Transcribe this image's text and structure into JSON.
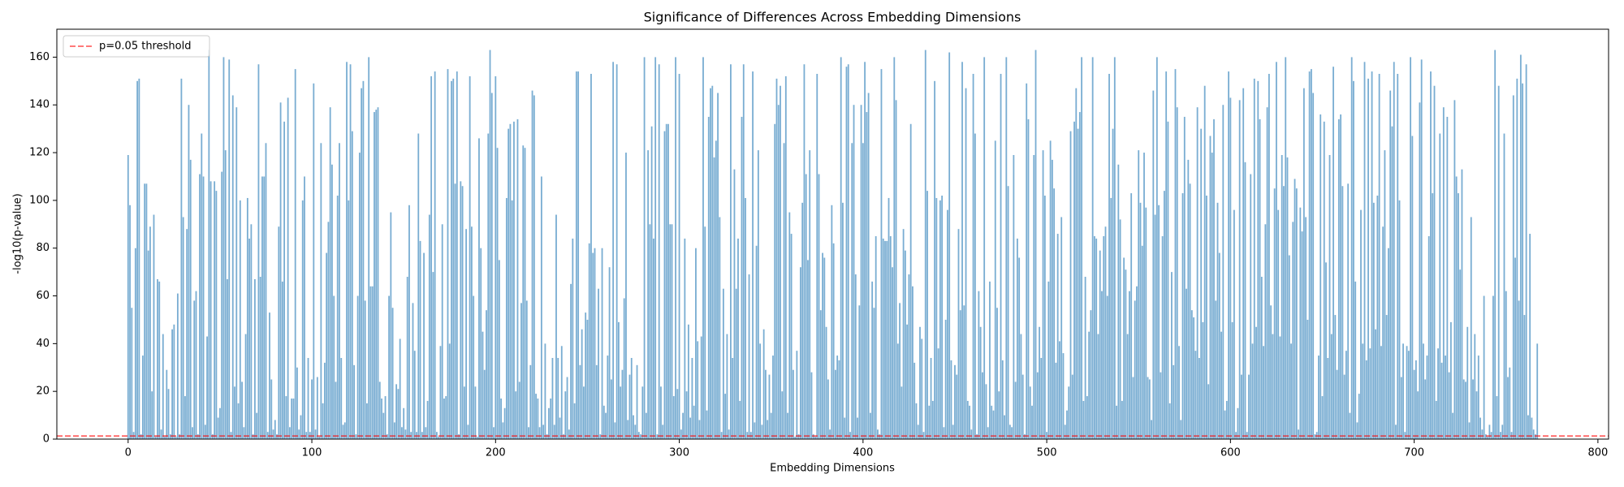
{
  "chart_data": {
    "type": "bar",
    "title": "Significance of Differences Across Embedding Dimensions",
    "x_label": "Embedding Dimensions",
    "y_label": "-log10(p-value)",
    "color": "#1f77b4",
    "alpha": 0.6,
    "values": [
      119,
      98,
      55,
      3,
      80,
      150,
      151,
      2,
      35,
      107,
      107,
      79,
      89,
      20,
      94,
      1,
      67,
      66,
      4,
      44,
      1,
      29,
      21,
      2,
      46,
      48,
      1,
      61,
      2,
      151,
      93,
      18,
      88,
      140,
      117,
      5,
      58,
      62,
      2,
      111,
      128,
      110,
      6,
      43,
      163,
      108,
      2,
      108,
      104,
      9,
      13,
      112,
      160,
      121,
      67,
      159,
      3,
      144,
      22,
      139,
      15,
      100,
      24,
      5,
      44,
      101,
      84,
      90,
      2,
      67,
      11,
      157,
      68,
      110,
      110,
      124,
      3,
      53,
      25,
      4,
      8,
      2,
      89,
      141,
      66,
      133,
      18,
      143,
      5,
      17,
      17,
      155,
      30,
      4,
      10,
      100,
      110,
      3,
      34,
      3,
      25,
      149,
      4,
      26,
      1,
      124,
      15,
      32,
      78,
      91,
      139,
      115,
      60,
      24,
      102,
      124,
      34,
      6,
      7,
      158,
      100,
      157,
      129,
      31,
      2,
      60,
      120,
      147,
      150,
      58,
      15,
      160,
      64,
      64,
      137,
      138,
      139,
      24,
      17,
      11,
      18,
      2,
      60,
      95,
      55,
      7,
      23,
      21,
      42,
      5,
      13,
      4,
      68,
      98,
      3,
      57,
      37,
      3,
      128,
      83,
      3,
      78,
      5,
      16,
      94,
      152,
      70,
      154,
      3,
      1,
      39,
      90,
      17,
      18,
      155,
      40,
      150,
      151,
      107,
      154,
      2,
      108,
      106,
      22,
      88,
      6,
      152,
      89,
      60,
      22,
      1,
      126,
      80,
      45,
      29,
      54,
      128,
      163,
      145,
      5,
      152,
      122,
      75,
      17,
      7,
      13,
      101,
      130,
      132,
      100,
      133,
      20,
      134,
      24,
      57,
      123,
      122,
      58,
      5,
      31,
      146,
      144,
      19,
      17,
      5,
      110,
      6,
      40,
      2,
      13,
      17,
      34,
      6,
      94,
      34,
      9,
      39,
      2,
      20,
      26,
      4,
      65,
      84,
      15,
      154,
      154,
      31,
      46,
      22,
      53,
      50,
      82,
      153,
      78,
      80,
      31,
      63,
      2,
      80,
      14,
      11,
      35,
      72,
      25,
      158,
      7,
      157,
      49,
      22,
      29,
      59,
      120,
      8,
      27,
      34,
      10,
      6,
      31,
      3,
      2,
      22,
      160,
      11,
      121,
      90,
      131,
      84,
      160,
      2,
      157,
      22,
      6,
      129,
      132,
      132,
      90,
      90,
      18,
      160,
      21,
      153,
      4,
      11,
      84,
      20,
      48,
      9,
      34,
      14,
      80,
      41,
      8,
      43,
      160,
      89,
      12,
      135,
      147,
      148,
      118,
      125,
      145,
      93,
      3,
      63,
      19,
      44,
      4,
      157,
      34,
      113,
      63,
      84,
      16,
      135,
      157,
      101,
      3,
      69,
      3,
      154,
      7,
      81,
      121,
      40,
      6,
      46,
      29,
      8,
      27,
      11,
      35,
      132,
      151,
      140,
      148,
      20,
      124,
      152,
      11,
      95,
      86,
      29,
      1,
      37,
      2,
      72,
      99,
      157,
      111,
      75,
      121,
      28,
      2,
      1,
      153,
      111,
      54,
      78,
      76,
      47,
      25,
      4,
      98,
      82,
      29,
      35,
      33,
      160,
      99,
      9,
      156,
      157,
      3,
      124,
      140,
      69,
      9,
      56,
      140,
      124,
      158,
      137,
      145,
      11,
      66,
      55,
      85,
      4,
      2,
      155,
      84,
      83,
      83,
      101,
      85,
      72,
      160,
      142,
      40,
      57,
      22,
      88,
      79,
      48,
      69,
      132,
      64,
      32,
      15,
      6,
      47,
      42,
      3,
      163,
      104,
      14,
      34,
      16,
      150,
      101,
      38,
      100,
      102,
      5,
      50,
      96,
      162,
      33,
      6,
      31,
      27,
      88,
      54,
      158,
      56,
      147,
      16,
      14,
      4,
      153,
      128,
      2,
      62,
      47,
      28,
      160,
      23,
      5,
      66,
      14,
      12,
      125,
      55,
      20,
      153,
      33,
      10,
      160,
      106,
      6,
      5,
      119,
      24,
      84,
      76,
      44,
      27,
      2,
      149,
      134,
      22,
      14,
      119,
      163,
      28,
      47,
      34,
      121,
      102,
      3,
      66,
      125,
      117,
      105,
      32,
      86,
      41,
      93,
      36,
      6,
      12,
      22,
      129,
      27,
      133,
      147,
      130,
      137,
      160,
      16,
      68,
      18,
      45,
      54,
      160,
      85,
      84,
      44,
      79,
      62,
      85,
      89,
      60,
      153,
      101,
      130,
      160,
      14,
      115,
      92,
      16,
      76,
      71,
      44,
      62,
      103,
      26,
      58,
      64,
      121,
      99,
      81,
      120,
      97,
      26,
      25,
      8,
      146,
      94,
      160,
      98,
      28,
      85,
      104,
      154,
      133,
      15,
      70,
      31,
      155,
      139,
      39,
      8,
      103,
      135,
      63,
      117,
      107,
      54,
      51,
      37,
      139,
      34,
      130,
      49,
      148,
      102,
      23,
      127,
      120,
      134,
      58,
      99,
      78,
      45,
      140,
      12,
      16,
      154,
      143,
      49,
      96,
      3,
      13,
      142,
      27,
      147,
      116,
      3,
      27,
      111,
      40,
      151,
      47,
      150,
      134,
      68,
      39,
      90,
      139,
      153,
      56,
      44,
      105,
      158,
      96,
      43,
      119,
      106,
      160,
      118,
      77,
      40,
      91,
      109,
      105,
      4,
      97,
      87,
      147,
      93,
      50,
      154,
      155,
      145,
      2,
      3,
      35,
      136,
      18,
      133,
      74,
      34,
      119,
      44,
      156,
      52,
      29,
      134,
      136,
      106,
      27,
      37,
      107,
      11,
      160,
      150,
      66,
      7,
      19,
      96,
      40,
      158,
      33,
      151,
      38,
      154,
      99,
      46,
      102,
      153,
      39,
      89,
      121,
      52,
      80,
      146,
      131,
      158,
      6,
      153,
      100,
      26,
      40,
      3,
      39,
      37,
      160,
      127,
      29,
      33,
      20,
      141,
      159,
      40,
      25,
      35,
      85,
      154,
      103,
      148,
      16,
      38,
      128,
      32,
      139,
      35,
      135,
      28,
      49,
      11,
      142,
      110,
      103,
      71,
      113,
      25,
      24,
      47,
      7,
      93,
      25,
      44,
      20,
      35,
      9,
      4,
      60,
      2,
      1,
      6,
      3,
      60,
      163,
      18,
      148,
      3,
      6,
      128,
      62,
      26,
      30,
      3,
      144,
      76,
      151,
      58,
      161,
      149,
      52,
      157,
      10,
      86,
      9,
      4,
      2,
      40
    ],
    "threshold": 1.30103,
    "threshold_label": "p=0.05 threshold",
    "threshold_color": "#ff0000",
    "legend": "upper left",
    "xlim": [
      -38.8,
      805.8
    ],
    "xticks": [
      0,
      100,
      200,
      300,
      400,
      500,
      600,
      700,
      800
    ],
    "ylim": [
      0,
      171.7
    ],
    "yticks": [
      0,
      20,
      40,
      60,
      80,
      100,
      120,
      140,
      160
    ]
  }
}
